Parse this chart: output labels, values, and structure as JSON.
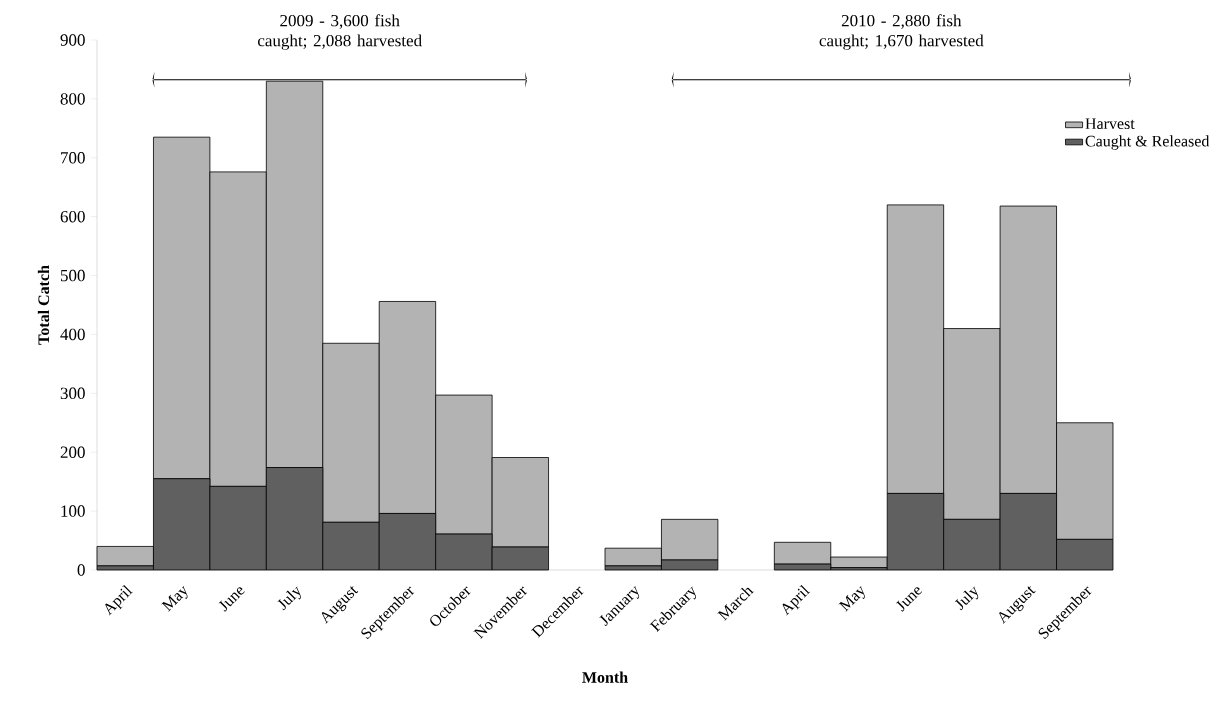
{
  "chart_data": {
    "type": "bar",
    "stacked": true,
    "xlabel": "Month",
    "ylabel": "Total Catch",
    "categories": [
      "April",
      "May",
      "June",
      "July",
      "August",
      "September",
      "October",
      "November",
      "December",
      "January",
      "February",
      "March",
      "April",
      "May",
      "June",
      "July",
      "August",
      "September"
    ],
    "series": [
      {
        "name": "Caught & Released",
        "color": "#606060",
        "values": [
          7,
          155,
          142,
          174,
          81,
          96,
          61,
          39,
          0,
          7,
          17,
          0,
          10,
          4,
          130,
          86,
          130,
          52
        ]
      },
      {
        "name": "Harvest",
        "color": "#b3b3b3",
        "values": [
          33,
          580,
          534,
          656,
          304,
          360,
          236,
          152,
          0,
          30,
          69,
          0,
          37,
          18,
          490,
          324,
          488,
          198
        ]
      }
    ],
    "ylim": [
      0,
      900
    ],
    "yticks": [
      0,
      100,
      200,
      300,
      400,
      500,
      600,
      700,
      800,
      900
    ],
    "legend": "top right",
    "annotations": [
      "2009 - 3,600 fish caught; 2,088 harvested",
      "2010 - 2,880 fish caught; 1,670 harvested"
    ]
  }
}
